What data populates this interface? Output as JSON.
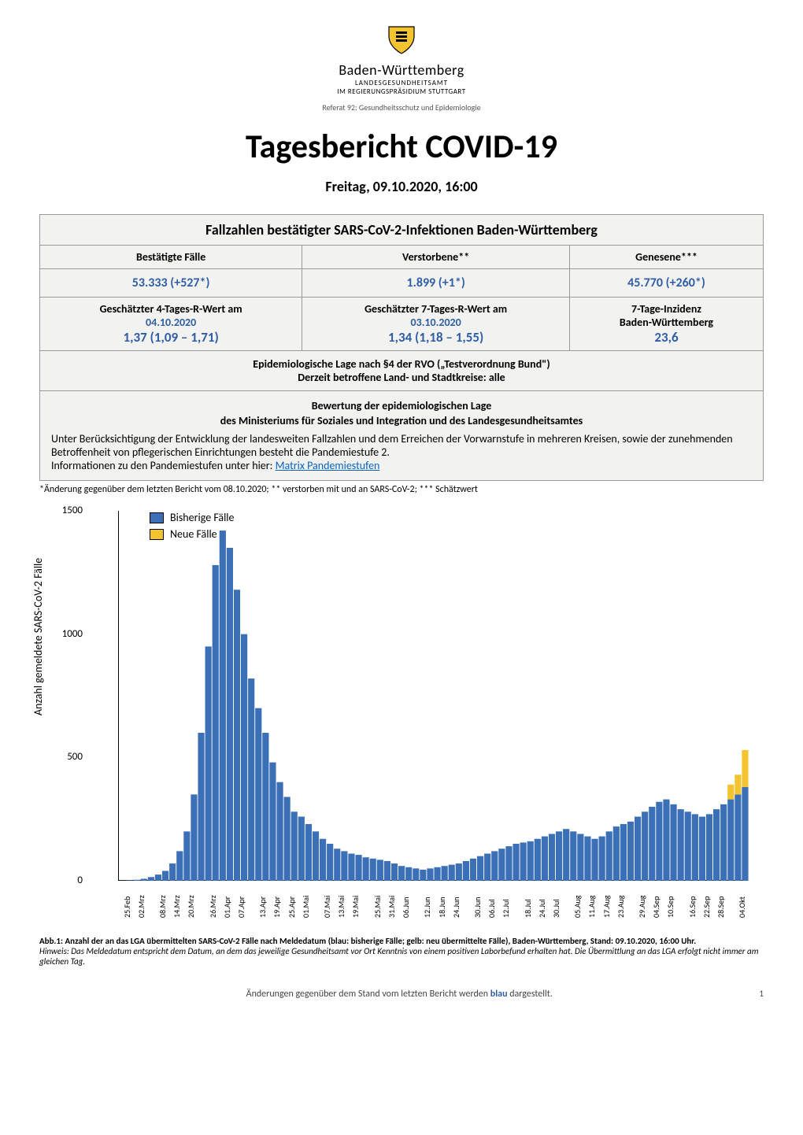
{
  "logo": {
    "state": "Baden-Württemberg",
    "line1": "LANDESGESUNDHEITSAMT",
    "line2": "IM REGIERUNGSPRÄSIDIUM STUTTGART",
    "line3": "Referat 92: Gesundheitsschutz und Epidemiologie"
  },
  "title": "Tagesbericht COVID-19",
  "subtitle": "Freitag, 09.10.2020, 16:00",
  "table": {
    "section_header": "Fallzahlen bestätigter SARS-CoV-2-Infektionen Baden-Württemberg",
    "row1": {
      "h1": "Bestätigte Fälle",
      "h2": "Verstorbene**",
      "h3": "Genesene***"
    },
    "row1_vals": {
      "v1": "53.333 (+527*)",
      "v2": "1.899 (+1*)",
      "v3": "45.770 (+260*)"
    },
    "row2": {
      "h1a": "Geschätzter 4-Tages-R-Wert am",
      "h1b": "04.10.2020",
      "h1c": "1,37 (1,09 – 1,71)",
      "h2a": "Geschätzter 7-Tages-R-Wert am",
      "h2b": "03.10.2020",
      "h2c": "1,34 (1,18 – 1,55)",
      "h3a": "7-Tage-Inzidenz",
      "h3b": "Baden-Württemberg",
      "h3c": "23,6"
    },
    "epi": {
      "l1": "Epidemiologische Lage nach §4 der RVO („Testverordnung Bund\")",
      "l2": "Derzeit betroffene Land- und Stadtkreise:  alle"
    },
    "bewertung": {
      "title": "Bewertung der epidemiologischen Lage",
      "sub": "des Ministeriums für Soziales und Integration und des Landesgesundheitsamtes",
      "body": "Unter Berücksichtigung der Entwicklung der landesweiten Fallzahlen und dem Erreichen der Vorwarnstufe in mehreren Kreisen, sowie der zunehmenden Betroffenheit von pflegerischen Einrichtungen besteht die Pandemiestufe 2.",
      "info_prefix": "Informationen zu den Pandemiestufen unter hier: ",
      "info_link": "Matrix Pandemiestufen"
    }
  },
  "footnote": "*Änderung gegenüber dem letzten Bericht vom 08.10.2020; ** verstorben mit und an SARS-CoV-2; *** Schätzwert",
  "chart": {
    "type": "bar",
    "y_label": "Anzahl gemeldete SARS-CoV-2 Fälle",
    "legend": [
      {
        "label": "Bisherige Fälle",
        "color": "#3b6fb6"
      },
      {
        "label": "Neue Fälle",
        "color": "#f4c430"
      }
    ],
    "ylim": [
      0,
      1500
    ],
    "yticks": [
      0,
      500,
      1000,
      1500
    ],
    "background_color": "#ffffff",
    "bar_color_prev": "#3b6fb6",
    "bar_color_new": "#f4c430",
    "x_labels": [
      "25.Feb",
      "02.Mrz",
      "08.Mrz",
      "14.Mrz",
      "20.Mrz",
      "26.Mrz",
      "01.Apr",
      "07.Apr",
      "13.Apr",
      "19.Apr",
      "25.Apr",
      "01.Mai",
      "07.Mai",
      "13.Mai",
      "19.Mai",
      "25.Mai",
      "31.Mai",
      "06.Jun",
      "12.Jun",
      "18.Jun",
      "24.Jun",
      "30.Jun",
      "06.Jul",
      "12.Jul",
      "18.Jul",
      "24.Jul",
      "30.Jul",
      "05.Aug",
      "11.Aug",
      "17.Aug",
      "23.Aug",
      "29.Aug",
      "04.Sep",
      "10.Sep",
      "16.Sep",
      "22.Sep",
      "28.Sep",
      "04.Okt"
    ],
    "values_prev": [
      1,
      2,
      4,
      8,
      15,
      25,
      40,
      70,
      120,
      200,
      350,
      600,
      950,
      1280,
      1420,
      1350,
      1180,
      1000,
      820,
      700,
      600,
      480,
      400,
      340,
      280,
      260,
      230,
      200,
      170,
      150,
      130,
      120,
      110,
      105,
      95,
      90,
      85,
      80,
      70,
      60,
      55,
      50,
      45,
      50,
      55,
      60,
      65,
      70,
      80,
      90,
      100,
      110,
      120,
      130,
      140,
      150,
      155,
      160,
      170,
      180,
      190,
      200,
      210,
      200,
      190,
      180,
      170,
      180,
      200,
      220,
      230,
      240,
      260,
      280,
      300,
      320,
      330,
      310,
      290,
      280,
      270,
      260,
      270,
      290,
      310,
      330,
      350,
      380
    ],
    "values_new": [
      0,
      0,
      0,
      0,
      0,
      0,
      0,
      0,
      0,
      0,
      0,
      0,
      0,
      0,
      0,
      0,
      0,
      0,
      0,
      0,
      0,
      0,
      0,
      0,
      0,
      0,
      0,
      0,
      0,
      0,
      0,
      0,
      0,
      0,
      0,
      0,
      0,
      0,
      0,
      0,
      0,
      0,
      0,
      0,
      0,
      0,
      0,
      0,
      0,
      0,
      0,
      0,
      0,
      0,
      0,
      0,
      0,
      0,
      0,
      0,
      0,
      0,
      0,
      0,
      0,
      0,
      0,
      0,
      0,
      0,
      0,
      0,
      0,
      0,
      0,
      0,
      0,
      0,
      0,
      0,
      0,
      0,
      0,
      0,
      0,
      60,
      80,
      150
    ]
  },
  "caption": {
    "l1": "Abb.1: Anzahl der an das LGA übermittelten SARS-CoV-2 Fälle nach Meldedatum (blau: bisherige Fälle; gelb: neu übermittelte Fälle), Baden-Württemberg, Stand: 09.10.2020, 16:00 Uhr.",
    "l2": "Hinweis: Das Meldedatum entspricht dem Datum, an dem das jeweilige Gesundheitsamt vor Ort Kenntnis von einem positiven Laborbefund erhalten hat. Die Übermittlung an das LGA erfolgt nicht immer am gleichen Tag."
  },
  "footer": {
    "text_a": "Änderungen gegenüber dem Stand vom letzten Bericht werden ",
    "text_b": "blau",
    "text_c": " dargestellt.",
    "page": "1"
  }
}
